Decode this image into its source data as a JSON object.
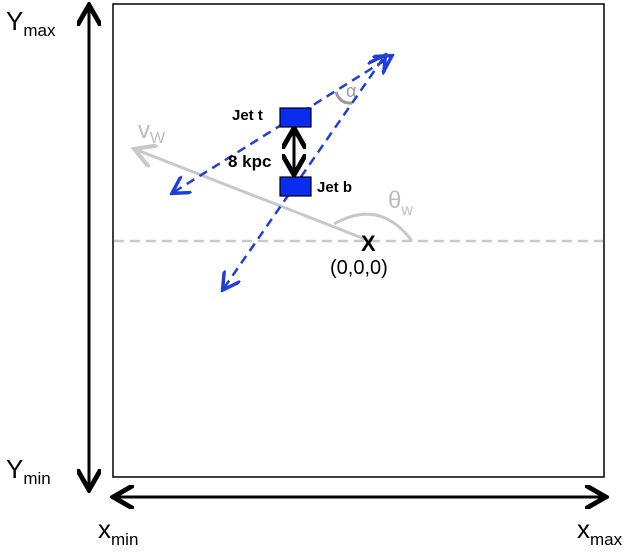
{
  "axes": {
    "y_max_label": "Y",
    "y_max_sub": "max",
    "y_min_label": "Y",
    "y_min_sub": "min",
    "x_min_label": "x",
    "x_min_sub": "min",
    "x_max_label": "x",
    "x_max_sub": "max"
  },
  "labels": {
    "jet_top": "Jet t",
    "jet_bottom": "Jet b",
    "separation": "8 kpc",
    "alpha": "α",
    "wind_velocity": "v",
    "wind_velocity_sub": "W",
    "theta": "θ",
    "theta_sub": "w",
    "origin_mark": "X",
    "origin_coords": "(0,0,0)"
  },
  "colors": {
    "jet_fill": "#0a2cf0",
    "jet_arrows": "#1f3fd6",
    "wind": "#c8c8c8",
    "axis": "#000000"
  }
}
